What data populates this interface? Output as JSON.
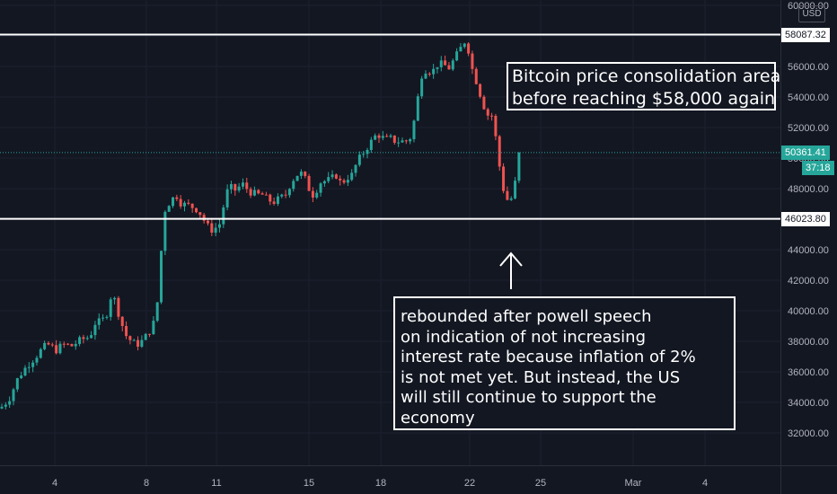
{
  "chart_data": {
    "type": "candlestick",
    "currency": "USD",
    "x_ticks": [
      "4",
      "8",
      "11",
      "15",
      "18",
      "22",
      "25",
      "Mar",
      "4"
    ],
    "y_ticks": [
      "32000.00",
      "34000.00",
      "36000.00",
      "38000.00",
      "40000.00",
      "42000.00",
      "44000.00",
      "46000.00",
      "48000.00",
      "50000.00",
      "52000.00",
      "54000.00",
      "56000.00",
      "58000.00",
      "60000.00"
    ],
    "ylim": [
      31300,
      61000
    ],
    "horizontal_lines": [
      {
        "value": 58087.32,
        "label": "58087.32"
      },
      {
        "value": 46023.8,
        "label": "46023.80"
      }
    ],
    "last_price": {
      "value": 50361.41,
      "label": "50361.41",
      "countdown": "37:18"
    },
    "colors": {
      "up": "#26a69a",
      "down": "#ef5350",
      "background": "#131722",
      "line": "#ffffff"
    },
    "series": [
      {
        "name": "",
        "waypoints": [
          [
            0,
            33600
          ],
          [
            10,
            34200
          ],
          [
            20,
            35600
          ],
          [
            30,
            36400
          ],
          [
            40,
            37000
          ],
          [
            48,
            37600
          ],
          [
            55,
            37800
          ],
          [
            62,
            37400
          ],
          [
            70,
            37800
          ],
          [
            80,
            37700
          ],
          [
            90,
            38100
          ],
          [
            100,
            38300
          ],
          [
            106,
            39200
          ],
          [
            112,
            39300
          ],
          [
            118,
            39600
          ],
          [
            123,
            40900
          ],
          [
            128,
            40700
          ],
          [
            134,
            39400
          ],
          [
            140,
            38400
          ],
          [
            148,
            37900
          ],
          [
            155,
            37800
          ],
          [
            162,
            38300
          ],
          [
            168,
            38800
          ],
          [
            174,
            39600
          ],
          [
            179,
            43600
          ],
          [
            184,
            46700
          ],
          [
            190,
            47200
          ],
          [
            196,
            47600
          ],
          [
            202,
            47000
          ],
          [
            210,
            46900
          ],
          [
            218,
            46700
          ],
          [
            224,
            46300
          ],
          [
            230,
            45600
          ],
          [
            236,
            45300
          ],
          [
            242,
            45500
          ],
          [
            246,
            45800
          ],
          [
            251,
            47600
          ],
          [
            256,
            48100
          ],
          [
            262,
            47900
          ],
          [
            270,
            48300
          ],
          [
            278,
            47800
          ],
          [
            286,
            47600
          ],
          [
            292,
            47600
          ],
          [
            298,
            47300
          ],
          [
            304,
            47100
          ],
          [
            310,
            47300
          ],
          [
            318,
            47600
          ],
          [
            324,
            48400
          ],
          [
            330,
            48900
          ],
          [
            336,
            49000
          ],
          [
            342,
            48400
          ],
          [
            346,
            47600
          ],
          [
            350,
            47600
          ],
          [
            356,
            48400
          ],
          [
            362,
            48500
          ],
          [
            368,
            48600
          ],
          [
            374,
            48900
          ],
          [
            380,
            48300
          ],
          [
            386,
            48700
          ],
          [
            392,
            48900
          ],
          [
            398,
            49800
          ],
          [
            404,
            50300
          ],
          [
            410,
            50800
          ],
          [
            416,
            51300
          ],
          [
            420,
            51600
          ],
          [
            424,
            51400
          ],
          [
            430,
            51200
          ],
          [
            436,
            51300
          ],
          [
            440,
            51100
          ],
          [
            446,
            51100
          ],
          [
            452,
            51100
          ],
          [
            458,
            51400
          ],
          [
            463,
            53100
          ],
          [
            467,
            54600
          ],
          [
            471,
            55900
          ],
          [
            476,
            55700
          ],
          [
            482,
            55700
          ],
          [
            488,
            56200
          ],
          [
            494,
            56100
          ],
          [
            500,
            55900
          ],
          [
            506,
            56500
          ],
          [
            512,
            57100
          ],
          [
            518,
            57700
          ],
          [
            522,
            57000
          ],
          [
            526,
            55800
          ],
          [
            530,
            55100
          ],
          [
            534,
            54300
          ],
          [
            538,
            53600
          ],
          [
            542,
            52700
          ],
          [
            546,
            53100
          ],
          [
            550,
            52300
          ],
          [
            554,
            50300
          ],
          [
            558,
            48800
          ],
          [
            562,
            47500
          ],
          [
            566,
            47200
          ],
          [
            570,
            47400
          ],
          [
            574,
            48500
          ],
          [
            578,
            50361
          ]
        ]
      }
    ]
  },
  "annotations": {
    "consolidation": {
      "lines": [
        "Bitcoin price consolidation area",
        "before reaching $58,000 again"
      ]
    },
    "rebound": {
      "lines": [
        "rebounded after powell speech",
        "on indication of not increasing",
        "interest rate because inflation of 2%",
        "is not met yet. But instead, the US",
        "will still continue to support the",
        "economy"
      ]
    }
  }
}
